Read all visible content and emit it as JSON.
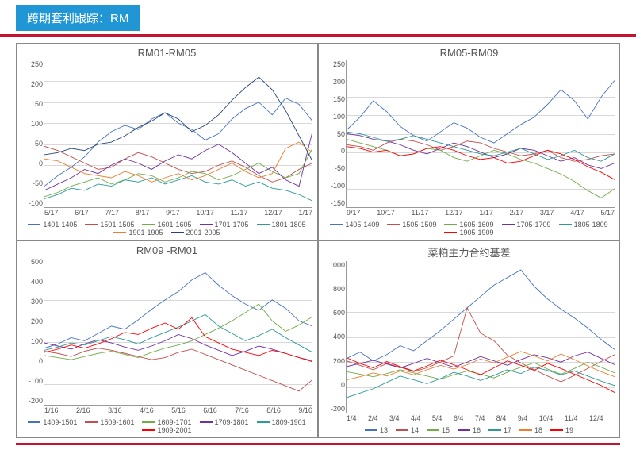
{
  "header": {
    "label": "跨期套利跟踪：RM"
  },
  "colors": {
    "accent_blue": "#2196d4",
    "accent_red": "#c41230",
    "grid": "#d8d8d8",
    "axis": "#999999",
    "text": "#555555",
    "bg": "#ffffff"
  },
  "palette": {
    "blue": "#4472c4",
    "red": "#c0504d",
    "green": "#70ad47",
    "purple": "#7030a0",
    "teal": "#2e9999",
    "orange": "#ed7d31",
    "darkblue": "#264478",
    "brightred": "#ff0000"
  },
  "charts": [
    {
      "title": "RM01-RM05",
      "ylim": [
        -100,
        250
      ],
      "ystep": 50,
      "xticks": [
        "5/17",
        "6/17",
        "7/17",
        "8/17",
        "9/17",
        "10/17",
        "11/17",
        "12/17",
        "1/17"
      ],
      "series": [
        {
          "label": "1401-1405",
          "color": "#4472c4",
          "data": [
            -50,
            -25,
            -5,
            20,
            55,
            80,
            95,
            85,
            110,
            125,
            100,
            85,
            60,
            75,
            110,
            135,
            150,
            120,
            160,
            145,
            105
          ]
        },
        {
          "label": "1501-1505",
          "color": "#c0504d",
          "data": [
            45,
            35,
            20,
            5,
            -10,
            -5,
            15,
            30,
            20,
            5,
            -10,
            -20,
            -15,
            0,
            10,
            -5,
            -25,
            -40,
            -30,
            -10,
            5
          ]
        },
        {
          "label": "1601-1605",
          "color": "#70ad47",
          "data": [
            -75,
            -65,
            -50,
            -40,
            -30,
            -45,
            -35,
            -20,
            -25,
            -40,
            -30,
            -15,
            -20,
            -35,
            -25,
            -10,
            5,
            -15,
            -30,
            -20,
            40
          ]
        },
        {
          "label": "1701-1705",
          "color": "#7030a0",
          "data": [
            -60,
            -45,
            -30,
            -10,
            -20,
            0,
            15,
            5,
            -10,
            10,
            25,
            15,
            35,
            50,
            30,
            5,
            -20,
            -5,
            -35,
            -50,
            80
          ]
        },
        {
          "label": "1801-1805",
          "color": "#2e9999",
          "data": [
            -80,
            -70,
            -55,
            -60,
            -45,
            -50,
            -35,
            -40,
            -30,
            -45,
            -35,
            -25,
            -40,
            -45,
            -35,
            -50,
            -40,
            -55,
            -60,
            -70,
            -85
          ]
        },
        {
          "label": "1901-1905",
          "color": "#ed7d31",
          "data": [
            15,
            10,
            -5,
            -20,
            -25,
            -30,
            -15,
            -25,
            -40,
            -30,
            -20,
            -35,
            -25,
            -10,
            5,
            -15,
            -30,
            -20,
            40,
            55,
            30
          ]
        },
        {
          "label": "2001-2005",
          "color": "#264478",
          "data": [
            25,
            30,
            40,
            35,
            50,
            55,
            70,
            90,
            105,
            125,
            110,
            80,
            95,
            120,
            155,
            185,
            210,
            180,
            130,
            70,
            10
          ]
        }
      ]
    },
    {
      "title": "RM05-RM09",
      "ylim": [
        -150,
        250
      ],
      "ystep": 50,
      "xticks": [
        "9/17",
        "10/17",
        "11/17",
        "12/17",
        "1/17",
        "2/17",
        "3/17",
        "4/17",
        "5/17"
      ],
      "series": [
        {
          "label": "1405-1409",
          "color": "#4472c4",
          "data": [
            60,
            95,
            140,
            110,
            70,
            45,
            30,
            55,
            80,
            65,
            40,
            25,
            50,
            75,
            95,
            130,
            170,
            140,
            90,
            150,
            195
          ]
        },
        {
          "label": "1505-1509",
          "color": "#c0504d",
          "data": [
            20,
            15,
            5,
            25,
            35,
            30,
            20,
            5,
            15,
            30,
            25,
            10,
            0,
            -10,
            -5,
            5,
            -15,
            -25,
            -20,
            -10,
            -5
          ]
        },
        {
          "label": "1605-1609",
          "color": "#70ad47",
          "data": [
            35,
            25,
            15,
            5,
            -10,
            -5,
            10,
            5,
            -15,
            -25,
            -10,
            5,
            -5,
            -20,
            -30,
            -45,
            -60,
            -80,
            -105,
            -125,
            -100
          ]
        },
        {
          "label": "1705-1709",
          "color": "#7030a0",
          "data": [
            50,
            45,
            35,
            30,
            20,
            5,
            -5,
            10,
            25,
            15,
            0,
            -15,
            -5,
            10,
            5,
            -10,
            -25,
            -15,
            -35,
            -45,
            -30
          ]
        },
        {
          "label": "1805-1809",
          "color": "#2e9999",
          "data": [
            55,
            50,
            40,
            30,
            35,
            45,
            35,
            25,
            15,
            5,
            -5,
            -10,
            0,
            10,
            -5,
            -20,
            -10,
            5,
            -15,
            -25,
            -5
          ]
        },
        {
          "label": "1905-1909",
          "color": "#ff0000",
          "data": [
            15,
            10,
            0,
            5,
            -10,
            -5,
            10,
            15,
            5,
            -10,
            -20,
            -15,
            -30,
            -25,
            -10,
            5,
            -5,
            -20,
            -40,
            -55,
            -75
          ]
        }
      ]
    },
    {
      "title": "RM09 -RM01",
      "ylim": [
        -200,
        500
      ],
      "ystep": 100,
      "xticks": [
        "1/16",
        "2/16",
        "3/16",
        "4/16",
        "5/16",
        "6/16",
        "7/16",
        "8/16",
        "9/16"
      ],
      "series": [
        {
          "label": "1409-1501",
          "color": "#4472c4",
          "data": [
            70,
            90,
            120,
            105,
            140,
            175,
            160,
            205,
            255,
            300,
            340,
            395,
            430,
            370,
            320,
            280,
            250,
            300,
            260,
            200,
            175
          ]
        },
        {
          "label": "1509-1601",
          "color": "#c0504d",
          "data": [
            55,
            45,
            30,
            55,
            70,
            60,
            45,
            30,
            15,
            25,
            50,
            65,
            40,
            15,
            -10,
            -35,
            -60,
            -85,
            -110,
            -135,
            -80
          ]
        },
        {
          "label": "1609-1701",
          "color": "#70ad47",
          "data": [
            35,
            25,
            15,
            30,
            45,
            55,
            40,
            25,
            50,
            70,
            85,
            105,
            135,
            165,
            200,
            240,
            280,
            200,
            150,
            180,
            220
          ]
        },
        {
          "label": "1709-1801",
          "color": "#7030a0",
          "data": [
            95,
            80,
            65,
            90,
            110,
            95,
            75,
            60,
            80,
            105,
            135,
            115,
            85,
            60,
            35,
            55,
            80,
            65,
            45,
            25,
            10
          ]
        },
        {
          "label": "1809-1901",
          "color": "#2e9999",
          "data": [
            60,
            75,
            95,
            85,
            105,
            125,
            110,
            90,
            120,
            145,
            170,
            200,
            230,
            175,
            140,
            105,
            130,
            160,
            120,
            85,
            50
          ]
        },
        {
          "label": "1909-2001",
          "color": "#ff0000",
          "data": [
            50,
            65,
            85,
            70,
            90,
            115,
            145,
            135,
            165,
            190,
            160,
            215,
            125,
            95,
            65,
            50,
            35,
            60,
            45,
            25,
            5
          ]
        }
      ]
    },
    {
      "title": "菜粕主力合约基差",
      "ylim": [
        -200,
        1000
      ],
      "ystep": 200,
      "xticks": [
        "1/4",
        "2/4",
        "3/4",
        "4/4",
        "5/4",
        "6/4",
        "7/4",
        "8/4",
        "9/4",
        "10/4",
        "11/4",
        "12/4",
        ""
      ],
      "series": [
        {
          "label": "13",
          "color": "#4472c4",
          "data": [
            230,
            280,
            210,
            260,
            330,
            290,
            370,
            450,
            540,
            630,
            720,
            810,
            870,
            930,
            800,
            700,
            620,
            550,
            470,
            380,
            300
          ]
        },
        {
          "label": "14",
          "color": "#c0504d",
          "data": [
            210,
            175,
            140,
            190,
            160,
            125,
            155,
            200,
            250,
            630,
            430,
            370,
            255,
            195,
            140,
            90,
            45,
            95,
            150,
            205,
            260
          ]
        },
        {
          "label": "15",
          "color": "#70ad47",
          "data": [
            125,
            105,
            85,
            110,
            140,
            115,
            90,
            65,
            100,
            130,
            105,
            75,
            120,
            160,
            195,
            145,
            105,
            150,
            200,
            160,
            115
          ]
        },
        {
          "label": "16",
          "color": "#7030a0",
          "data": [
            165,
            190,
            215,
            185,
            155,
            190,
            230,
            195,
            160,
            200,
            245,
            210,
            175,
            220,
            260,
            235,
            200,
            250,
            280,
            230,
            180
          ]
        },
        {
          "label": "17",
          "color": "#2e9999",
          "data": [
            -80,
            -45,
            -10,
            40,
            90,
            60,
            30,
            70,
            120,
            90,
            55,
            95,
            140,
            110,
            160,
            135,
            100,
            130,
            90,
            50,
            15
          ]
        },
        {
          "label": "18",
          "color": "#ed7d31",
          "data": [
            60,
            85,
            115,
            90,
            130,
            100,
            140,
            175,
            145,
            180,
            225,
            195,
            240,
            285,
            250,
            210,
            265,
            220,
            170,
            125,
            85
          ]
        },
        {
          "label": "19",
          "color": "#ff0000",
          "data": [
            235,
            190,
            155,
            205,
            165,
            130,
            170,
            215,
            180,
            140,
            100,
            155,
            210,
            175,
            135,
            190,
            150,
            105,
            60,
            15,
            -40
          ]
        }
      ]
    }
  ]
}
